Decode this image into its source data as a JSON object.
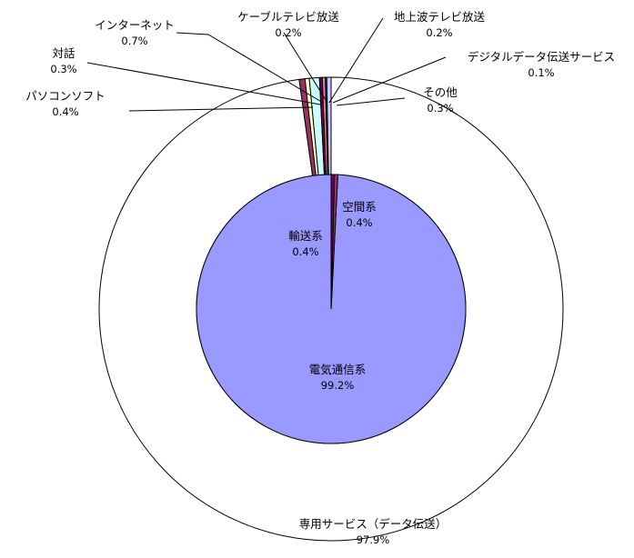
{
  "chart_data": [
    {
      "type": "pie",
      "ring": "outer",
      "start": "top",
      "direction": "clockwise",
      "unit": "%",
      "slices": [
        {
          "label": "専用サービス（データ伝送）",
          "value": 97.9,
          "value_label": "97.9%",
          "color": "#ffffff"
        },
        {
          "label": "パソコンソフト",
          "value": 0.4,
          "value_label": "0.4%",
          "color": "#993366"
        },
        {
          "label": "対話",
          "value": 0.3,
          "value_label": "0.3%",
          "color": "#ffffcc"
        },
        {
          "label": "インターネット",
          "value": 0.7,
          "value_label": "0.7%",
          "color": "#ccffff"
        },
        {
          "label": "ケーブルテレビ放送",
          "value": 0.2,
          "value_label": "0.2%",
          "color": "#660066"
        },
        {
          "label": "地上波テレビ放送",
          "value": 0.2,
          "value_label": "0.2%",
          "color": "#ff8080"
        },
        {
          "label": "デジタルデータ伝送サービス",
          "value": 0.1,
          "value_label": "0.1%",
          "color": "#0066cc"
        },
        {
          "label": "その他",
          "value": 0.3,
          "value_label": "0.3%",
          "color": "#ccccff"
        }
      ]
    },
    {
      "type": "pie",
      "ring": "inner",
      "start": "top",
      "direction": "counterclockwise",
      "unit": "%",
      "slices": [
        {
          "label": "電気通信系",
          "value": 99.2,
          "value_label": "99.2%",
          "color": "#9999ff"
        },
        {
          "label": "輸送系",
          "value": 0.4,
          "value_label": "0.4%",
          "color": "#993366"
        },
        {
          "label": "空間系",
          "value": 0.4,
          "value_label": "0.4%",
          "color": "#660066"
        }
      ]
    }
  ]
}
